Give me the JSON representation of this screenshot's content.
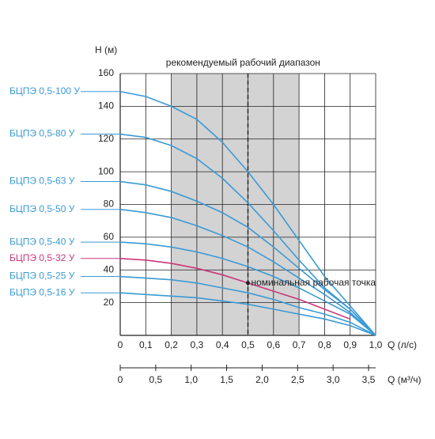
{
  "chart_data": {
    "type": "line",
    "y_label": "H (м)",
    "x_label": "Q (л/с)",
    "x2_label": "Q (м³/ч)",
    "range_label": "рекомендуемый рабочий диапазон",
    "range": [
      0.2,
      0.7
    ],
    "nominal_point": {
      "x": 0.5,
      "y": 32,
      "label": "номинальная рабочая точка"
    },
    "x": [
      0,
      0.1,
      0.2,
      0.3,
      0.4,
      0.5,
      0.6,
      0.7,
      0.8,
      0.9,
      1.0
    ],
    "xlim": [
      0,
      1.0
    ],
    "xticks": [
      0,
      {
        "value": 0.1,
        "label": "0,1"
      },
      {
        "value": 0.2,
        "label": "0,2"
      },
      {
        "value": 0.3,
        "label": "0,3"
      },
      {
        "value": 0.4,
        "label": "0,4"
      },
      {
        "value": 0.5,
        "label": "0,5"
      },
      {
        "value": 0.6,
        "label": "0,6"
      },
      {
        "value": 0.7,
        "label": "0,7"
      },
      {
        "value": 0.8,
        "label": "0,8"
      },
      {
        "value": 0.9,
        "label": "0,9"
      },
      {
        "value": 1.0,
        "label": "1,0"
      }
    ],
    "x2lim": [
      0,
      3.6
    ],
    "x2ticks": [
      0,
      {
        "value": 0.5,
        "label": "0,5"
      },
      {
        "value": 1.0,
        "label": "1,0"
      },
      {
        "value": 1.5,
        "label": "1,5"
      },
      {
        "value": 2.0,
        "label": "2,0"
      },
      {
        "value": 2.5,
        "label": "2,5"
      },
      {
        "value": 3.0,
        "label": "3,0"
      },
      {
        "value": 3.5,
        "label": "3,5"
      }
    ],
    "ylim": [
      0,
      160
    ],
    "yticks": [
      20,
      40,
      60,
      80,
      100,
      120,
      140,
      160
    ],
    "grid": true,
    "series": [
      {
        "name": "БЦПЭ 0,5-100 У",
        "color": "#3a9ad4",
        "values": [
          149,
          146,
          140,
          132,
          118,
          100,
          80,
          58,
          36,
          18,
          0
        ]
      },
      {
        "name": "БЦПЭ 0,5-80 У",
        "color": "#3a9ad4",
        "values": [
          123,
          121,
          116,
          108,
          96,
          81,
          64,
          46,
          29,
          16,
          0
        ]
      },
      {
        "name": "БЦПЭ 0,5-63 У",
        "color": "#3a9ad4",
        "values": [
          94,
          92,
          88,
          82,
          75,
          66,
          54,
          41,
          28,
          16,
          0
        ]
      },
      {
        "name": "БЦПЭ 0,5-50 У",
        "color": "#3a9ad4",
        "values": [
          77,
          75,
          72,
          67,
          61,
          54,
          45,
          35,
          25,
          14,
          0
        ]
      },
      {
        "name": "БЦПЭ 0,5-40 У",
        "color": "#3a9ad4",
        "values": [
          57,
          56,
          54,
          51,
          47,
          42,
          36,
          29,
          21,
          13,
          0
        ]
      },
      {
        "name": "БЦПЭ 0,5-32 У",
        "color": "#c8387a",
        "values": [
          47,
          46,
          44,
          41,
          37,
          32,
          27,
          22,
          16,
          10,
          null
        ]
      },
      {
        "name": "БЦПЭ 0,5-25 У",
        "color": "#3a9ad4",
        "values": [
          36,
          35,
          34,
          32,
          29,
          26,
          22,
          17,
          13,
          8,
          0
        ]
      },
      {
        "name": "БЦПЭ 0,5-16 У",
        "color": "#3a9ad4",
        "values": [
          26,
          25,
          24,
          23,
          21,
          19,
          16,
          13,
          10,
          6,
          0
        ]
      }
    ]
  }
}
